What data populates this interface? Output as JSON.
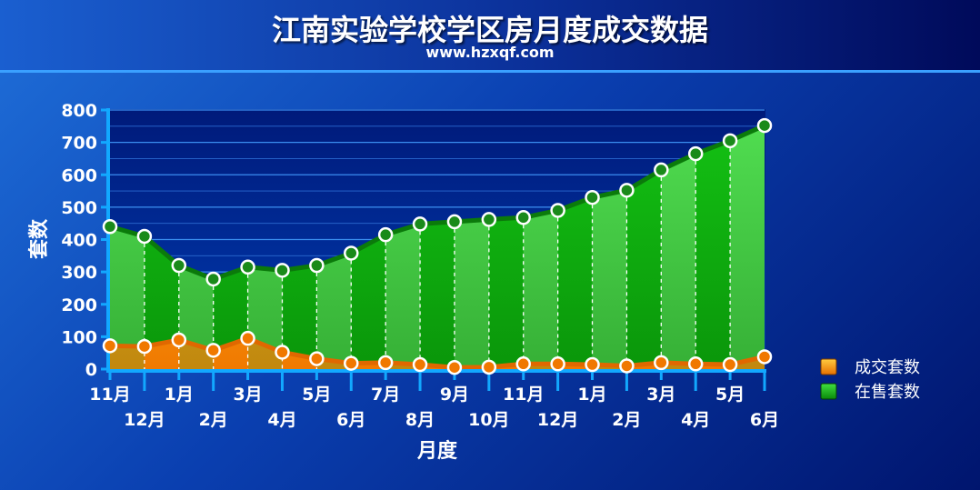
{
  "header": {
    "title": "江南实验学校学区房月度成交数据",
    "subtitle": "www.hzxqf.com"
  },
  "chart_data": {
    "type": "area",
    "categories": [
      "11月",
      "12月",
      "1月",
      "2月",
      "3月",
      "4月",
      "5月",
      "6月",
      "7月",
      "8月",
      "9月",
      "10月",
      "11月",
      "12月",
      "1月",
      "2月",
      "3月",
      "4月",
      "5月",
      "6月"
    ],
    "series": [
      {
        "name": "在售套数",
        "color": "#1ec81e",
        "values": [
          440,
          410,
          320,
          278,
          315,
          305,
          320,
          358,
          415,
          448,
          455,
          462,
          468,
          490,
          530,
          552,
          615,
          665,
          705,
          752
        ]
      },
      {
        "name": "成交套数",
        "color": "#ff9900",
        "values": [
          72,
          70,
          90,
          58,
          95,
          52,
          32,
          18,
          20,
          14,
          5,
          6,
          16,
          16,
          14,
          10,
          20,
          16,
          14,
          38
        ]
      }
    ],
    "xlabel": "月度",
    "ylabel": "套数",
    "ylim": [
      0,
      800
    ],
    "yticks": [
      0,
      100,
      200,
      300,
      400,
      500,
      600,
      700,
      800
    ],
    "grid": true,
    "legend_position": "right"
  }
}
